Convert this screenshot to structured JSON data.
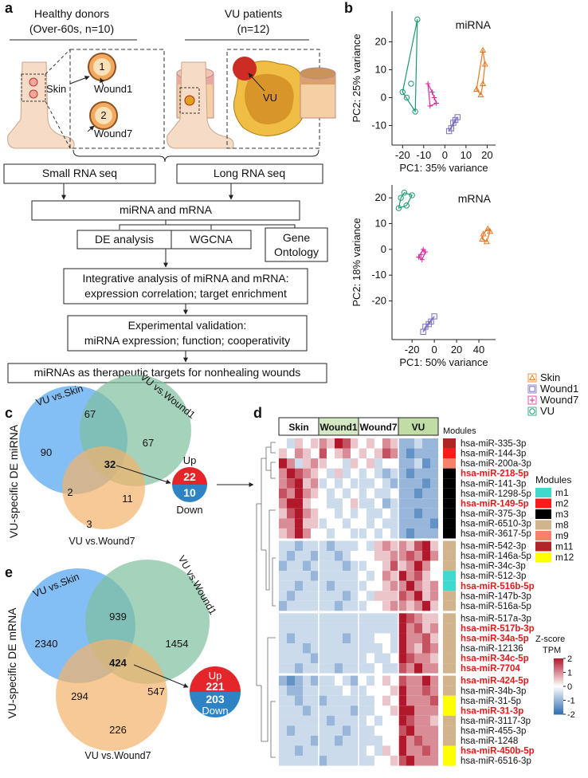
{
  "panel_a": {
    "label": "a",
    "groups": [
      {
        "title": "Healthy donors",
        "subtitle": "(Over-60s, n=10)"
      },
      {
        "title": "VU patients",
        "subtitle": "(n=12)"
      }
    ],
    "illustration_labels": {
      "one": "1",
      "two": "2",
      "skin": "Skin",
      "wound1": "Wound1",
      "wound7": "Wound7",
      "vu": "VU"
    },
    "steps": {
      "small_rna": "Small RNA seq",
      "long_rna": "Long RNA seq",
      "merge": "miRNA and mRNA",
      "de": "DE analysis",
      "wgcna": "WGCNA",
      "go": [
        "Gene",
        "Ontology"
      ],
      "integrative": [
        "Integrative analysis of miRNA and mRNA:",
        "expression correlation; target enrichment"
      ],
      "validation": [
        "Experimental validation:",
        "miRNA expression; function; cooperativity"
      ],
      "conclusion": "miRNAs as therapeutic targets for nonhealing wounds"
    }
  },
  "panel_b": {
    "label": "b",
    "groups": [
      {
        "name": "Skin",
        "color": "#e8781e",
        "marker": "triangle"
      },
      {
        "name": "Wound1",
        "color": "#7b6fc0",
        "marker": "square"
      },
      {
        "name": "Wound7",
        "color": "#e0249a",
        "marker": "cross"
      },
      {
        "name": "VU",
        "color": "#1a9a6c",
        "marker": "circle"
      }
    ],
    "charts": [
      {
        "type": "scatter",
        "title": "miRNA",
        "x_label": "PC1: 35% variance",
        "y_label": "PC2: 25% variance",
        "xlim": [
          -25,
          24
        ],
        "ylim": [
          -17,
          31
        ],
        "xticks": [
          -20,
          -10,
          0,
          10,
          20
        ],
        "yticks": [
          -10,
          0,
          10,
          20
        ],
        "series": [
          {
            "x": [
              17,
              18,
              19,
              18,
              15
            ],
            "y": [
              1,
              5,
              12,
              17,
              3
            ]
          },
          {
            "x": [
              5,
              3,
              2,
              4,
              6
            ],
            "y": [
              -8,
              -11,
              -12,
              -9,
              -7
            ]
          },
          {
            "x": [
              -8,
              -6,
              -4,
              -7,
              -5
            ],
            "y": [
              5,
              2,
              -2,
              -3,
              0
            ]
          },
          {
            "x": [
              -20,
              -16,
              -13,
              -14,
              -18
            ],
            "y": [
              2,
              5,
              28,
              -5,
              0
            ]
          }
        ]
      },
      {
        "type": "scatter",
        "title": "mRNA",
        "x_label": "PC1: 50% variance",
        "y_label": "PC2: 18% variance",
        "xlim": [
          -38,
          55
        ],
        "ylim": [
          -35,
          25
        ],
        "xticks": [
          -20,
          0,
          20,
          40
        ],
        "yticks": [
          -20,
          -10,
          0,
          10,
          20
        ],
        "series": [
          {
            "x": [
              44,
              47,
              50,
              43,
              48
            ],
            "y": [
              6,
              3,
              7,
              4,
              8
            ]
          },
          {
            "x": [
              -10,
              -5,
              0,
              -8,
              -3
            ],
            "y": [
              -32,
              -29,
              -26,
              -30,
              -28
            ]
          },
          {
            "x": [
              -12,
              -8,
              -14,
              -10,
              -11
            ],
            "y": [
              -2,
              -1,
              -3,
              0,
              -4
            ]
          },
          {
            "x": [
              -30,
              -25,
              -20,
              -32,
              -27
            ],
            "y": [
              20,
              17,
              21,
              16,
              22
            ]
          }
        ]
      }
    ]
  },
  "panel_c": {
    "label": "c",
    "y_label": "VU-specific DE miRNA",
    "sets": [
      "VU vs.Skin",
      "VU vs.Wound1",
      "VU vs.Wound7"
    ],
    "regions": {
      "skin_only": 90,
      "skin_wound1": 67,
      "wound1_only": 67,
      "all": 32,
      "skin_wound7": 2,
      "wound1_wound7": 11,
      "wound7_only": 3
    },
    "up": {
      "label": "Up",
      "value": 22
    },
    "down": {
      "label": "Down",
      "value": 10
    }
  },
  "panel_e": {
    "label": "e",
    "y_label": "VU-specific DE mRNA",
    "sets": [
      "VU vs.Skin",
      "VU vs.Wound1",
      "VU vs.Wound7"
    ],
    "regions": {
      "skin_only": 2340,
      "skin_wound1": 939,
      "wound1_only": 1454,
      "all": 424,
      "skin_wound7": 294,
      "wound1_wound7": 547,
      "wound7_only": 226
    },
    "up": {
      "label": "Up",
      "value": 221
    },
    "down": {
      "label": "Down",
      "value": 203
    }
  },
  "panel_d": {
    "label": "d",
    "groups": [
      {
        "name": "Skin",
        "color": "#ffffff"
      },
      {
        "name": "Wound1",
        "color": "#d5e8c4"
      },
      {
        "name": "Wound7",
        "color": "#ffffff"
      },
      {
        "name": "VU",
        "color": "#c2dca6"
      }
    ],
    "modules_title": "Modules",
    "rows": [
      {
        "name": "hsa-miR-335-3p",
        "module": "m11",
        "highlight": false
      },
      {
        "name": "hsa-miR-144-3p",
        "module": "m2",
        "highlight": false
      },
      {
        "name": "hsa-miR-200a-3p",
        "module": "m9",
        "highlight": false
      },
      {
        "name": "hsa-miR-218-5p",
        "module": "m3",
        "highlight": true
      },
      {
        "name": "hsa-miR-141-3p",
        "module": "m3",
        "highlight": false
      },
      {
        "name": "hsa-miR-1298-5p",
        "module": "m3",
        "highlight": false
      },
      {
        "name": "hsa-miR-149-5p",
        "module": "m3",
        "highlight": true
      },
      {
        "name": "hsa-miR-375-3p",
        "module": "m3",
        "highlight": false
      },
      {
        "name": "hsa-miR-6510-3p",
        "module": "m3",
        "highlight": false
      },
      {
        "name": "hsa-miR-3617-5p",
        "module": "m3",
        "highlight": false
      },
      {
        "name": "hsa-miR-542-3p",
        "module": "m8",
        "highlight": false
      },
      {
        "name": "hsa-miR-146a-5p",
        "module": "m8",
        "highlight": false
      },
      {
        "name": "hsa-miR-34c-3p",
        "module": "m8",
        "highlight": false
      },
      {
        "name": "hsa-miR-512-3p",
        "module": "m1",
        "highlight": false
      },
      {
        "name": "hsa-miR-516b-5p",
        "module": "m1",
        "highlight": true
      },
      {
        "name": "hsa-miR-147b-3p",
        "module": "m8",
        "highlight": false
      },
      {
        "name": "hsa-miR-516a-5p",
        "module": "m8",
        "highlight": false
      },
      {
        "name": "hsa-miR-517a-3p",
        "module": "m8",
        "highlight": false
      },
      {
        "name": "hsa-miR-517b-3p",
        "module": "m8",
        "highlight": true
      },
      {
        "name": "hsa-miR-34a-5p",
        "module": "m8",
        "highlight": true
      },
      {
        "name": "hsa-miR-12136",
        "module": "m8",
        "highlight": false
      },
      {
        "name": "hsa-miR-34c-5p",
        "module": "m8",
        "highlight": true
      },
      {
        "name": "hsa-miR-7704",
        "module": "m8",
        "highlight": true
      },
      {
        "name": "hsa-miR-424-5p",
        "module": "m8",
        "highlight": true
      },
      {
        "name": "hsa-miR-34b-3p",
        "module": "m8",
        "highlight": false
      },
      {
        "name": "hsa-miR-31-5p",
        "module": "m12",
        "highlight": false
      },
      {
        "name": "hsa-miR-31-3p",
        "module": "m12",
        "highlight": true
      },
      {
        "name": "hsa-miR-3117-3p",
        "module": "m8",
        "highlight": false
      },
      {
        "name": "hsa-miR-455-3p",
        "module": "m8",
        "highlight": false
      },
      {
        "name": "hsa-miR-1248",
        "module": "m8",
        "highlight": false
      },
      {
        "name": "hsa-miR-450b-5p",
        "module": "m12",
        "highlight": true
      },
      {
        "name": "hsa-miR-6516-3p",
        "module": "m12",
        "highlight": false
      }
    ],
    "values": [
      [
        0,
        -0.5,
        0.5,
        0,
        0.5,
        1,
        0.5,
        2,
        1.5,
        0.5,
        0,
        0.5,
        0,
        1,
        0.5,
        -1,
        -1,
        -0.5,
        -1,
        -1
      ],
      [
        0.5,
        0,
        1,
        0.5,
        0,
        1.5,
        0,
        0.5,
        1,
        0,
        0.5,
        0,
        0.5,
        1.5,
        1,
        -1,
        -1.5,
        -1,
        -1,
        -1
      ],
      [
        2,
        1,
        -0.5,
        0.5,
        1,
        0.5,
        0,
        0,
        -0.5,
        0.5,
        0,
        0.5,
        -0.5,
        0,
        0,
        -1,
        -1,
        -0.5,
        -1.5,
        -1
      ],
      [
        1,
        2,
        1.5,
        1,
        0.5,
        0,
        -0.5,
        0.5,
        -0.5,
        0,
        -0.5,
        0,
        -0.5,
        -1,
        -0.5,
        -1,
        -1.5,
        -1,
        -1,
        -1
      ],
      [
        1,
        1.5,
        2,
        0.5,
        1,
        -0.5,
        0,
        -0.5,
        0,
        -0.5,
        -0.5,
        -0.5,
        0,
        -0.5,
        -1,
        -1,
        -1,
        -1,
        -1.5,
        -1
      ],
      [
        1.5,
        1,
        2,
        1,
        0.5,
        0,
        -0.5,
        0,
        -0.5,
        0,
        -0.5,
        0,
        -0.5,
        -0.5,
        0,
        -1,
        -1,
        -1.5,
        -1,
        -1
      ],
      [
        1,
        2,
        2,
        0.5,
        0,
        0,
        -0.5,
        -0.5,
        0,
        0.5,
        -0.5,
        -0.5,
        0,
        -1,
        -0.5,
        -1,
        -1,
        -1,
        -1,
        -1
      ],
      [
        0.5,
        1.5,
        2,
        1,
        0.5,
        0,
        0,
        -0.5,
        0,
        -0.5,
        0,
        -0.5,
        -0.5,
        0,
        -0.5,
        -1,
        -1,
        -1.5,
        -1,
        -1
      ],
      [
        1,
        1,
        2,
        0.5,
        0.5,
        -0.5,
        0,
        0,
        -0.5,
        0,
        0,
        -0.5,
        0,
        -0.5,
        -0.5,
        -1,
        -1,
        -1,
        -1,
        -1.5
      ],
      [
        0.5,
        1,
        2,
        1,
        0,
        0,
        -0.5,
        0,
        0,
        -0.5,
        -0.5,
        0,
        -0.5,
        0,
        -0.5,
        -1,
        -1.5,
        -1,
        -1,
        -1
      ],
      [
        -0.5,
        -0.5,
        -1,
        -0.5,
        -0.5,
        -0.5,
        -1,
        -0.5,
        -0.5,
        -0.5,
        0,
        -0.5,
        0.5,
        1,
        0.5,
        1,
        0.5,
        1.5,
        2,
        0.5
      ],
      [
        -0.5,
        -1,
        -0.5,
        -0.5,
        -1,
        -0.5,
        -0.5,
        -1,
        -0.5,
        0,
        0,
        0,
        0.5,
        0.5,
        1,
        1,
        1.5,
        1,
        2,
        1
      ],
      [
        -1,
        -0.5,
        -0.5,
        -1,
        -0.5,
        -0.5,
        -0.5,
        -0.5,
        -1,
        -0.5,
        -0.5,
        0,
        0,
        0.5,
        1.5,
        0.5,
        1,
        2,
        1,
        0
      ],
      [
        -0.5,
        -0.5,
        -0.5,
        -0.5,
        -1,
        -0.5,
        -0.5,
        -0.5,
        -0.5,
        -0.5,
        0,
        -0.5,
        0,
        1,
        0.5,
        2,
        1,
        1.5,
        0.5,
        0
      ],
      [
        -0.5,
        -0.5,
        -1,
        -0.5,
        -0.5,
        -0.5,
        -1,
        -0.5,
        -0.5,
        -0.5,
        -0.5,
        0,
        0,
        0.5,
        1,
        1,
        2,
        1,
        0.5,
        1
      ],
      [
        -0.5,
        -1,
        -0.5,
        -0.5,
        -0.5,
        -0.5,
        -0.5,
        -0.5,
        -1,
        -0.5,
        0,
        -0.5,
        0.5,
        0.5,
        0.5,
        1.5,
        1,
        2,
        0.5,
        1
      ],
      [
        -1,
        -0.5,
        -0.5,
        -0.5,
        -0.5,
        -0.5,
        -0.5,
        -1,
        -0.5,
        -0.5,
        -0.5,
        0,
        0,
        0.5,
        1,
        1,
        0.5,
        1,
        2,
        0.5
      ],
      [
        -0.5,
        -0.5,
        -0.5,
        -0.5,
        -0.5,
        -0.5,
        -0.5,
        -0.5,
        -0.5,
        -0.5,
        -0.5,
        -0.5,
        -0.5,
        -0.5,
        -0.5,
        2,
        1.5,
        1,
        0.5,
        0.5
      ],
      [
        -0.5,
        -0.5,
        -0.5,
        -0.5,
        -0.5,
        -0.5,
        -0.5,
        -0.5,
        -0.5,
        -0.5,
        -0.5,
        -0.5,
        -0.5,
        -0.5,
        -0.5,
        2,
        1,
        1.5,
        0.5,
        1
      ],
      [
        -0.5,
        -1,
        -0.5,
        -0.5,
        -0.5,
        -0.5,
        -0.5,
        -0.5,
        -1,
        -0.5,
        -0.5,
        -0.5,
        0,
        0,
        -0.5,
        2,
        1,
        1,
        1.5,
        0.5
      ],
      [
        -0.5,
        -0.5,
        -0.5,
        -1,
        -0.5,
        -0.5,
        -0.5,
        -0.5,
        -0.5,
        -0.5,
        -0.5,
        -0.5,
        -0.5,
        0,
        -0.5,
        2,
        1,
        0.5,
        1.5,
        1
      ],
      [
        -0.5,
        -0.5,
        -0.5,
        -0.5,
        -1,
        -0.5,
        -0.5,
        -0.5,
        -0.5,
        -0.5,
        -0.5,
        0,
        -0.5,
        -0.5,
        0,
        2,
        1.5,
        1,
        1,
        0.5
      ],
      [
        -0.5,
        -0.5,
        -1,
        -0.5,
        -0.5,
        -0.5,
        -0.5,
        -1,
        -0.5,
        -0.5,
        -0.5,
        -0.5,
        0,
        -0.5,
        -0.5,
        1.5,
        1,
        2,
        1,
        1
      ],
      [
        -1,
        -1.5,
        -1,
        -0.5,
        -1,
        -0.5,
        -0.5,
        0,
        -0.5,
        -1,
        0,
        -0.5,
        0,
        0.5,
        0,
        1.5,
        1,
        1,
        2,
        1
      ],
      [
        -0.5,
        -1,
        -1,
        -0.5,
        -0.5,
        -0.5,
        -0.5,
        -0.5,
        0,
        -0.5,
        -0.5,
        0,
        0,
        0,
        0.5,
        2,
        1,
        1,
        1.5,
        1
      ],
      [
        -0.5,
        -0.5,
        -1,
        -0.5,
        -0.5,
        -1,
        -0.5,
        -0.5,
        -0.5,
        -0.5,
        -0.5,
        -0.5,
        0,
        0.5,
        0,
        2,
        1,
        1,
        1,
        1.5
      ],
      [
        -0.5,
        -0.5,
        -0.5,
        -1,
        -0.5,
        -0.5,
        -0.5,
        -0.5,
        -0.5,
        -1,
        -0.5,
        -0.5,
        0,
        0,
        0.5,
        2,
        2,
        1,
        1,
        1
      ],
      [
        -0.5,
        -0.5,
        -0.5,
        -0.5,
        -0.5,
        -0.5,
        -1,
        -0.5,
        -0.5,
        -0.5,
        -0.5,
        0,
        -0.5,
        0,
        0,
        2,
        1.5,
        1,
        1,
        0.5
      ],
      [
        -0.5,
        -1,
        -0.5,
        -0.5,
        -0.5,
        -0.5,
        -0.5,
        -0.5,
        -1,
        -0.5,
        -0.5,
        -0.5,
        0,
        0,
        0,
        1.5,
        2,
        1,
        1,
        1
      ],
      [
        -0.5,
        -0.5,
        -0.5,
        -0.5,
        -1,
        -0.5,
        -0.5,
        -1,
        -0.5,
        -0.5,
        -0.5,
        -0.5,
        -0.5,
        0,
        0,
        2,
        1,
        1.5,
        1,
        1
      ],
      [
        -0.5,
        -0.5,
        -1,
        -0.5,
        -0.5,
        -0.5,
        -0.5,
        -0.5,
        -0.5,
        -0.5,
        -0.5,
        0,
        -0.5,
        0.5,
        0,
        2,
        1,
        1,
        1.5,
        1
      ],
      [
        -0.5,
        -0.5,
        -0.5,
        -0.5,
        -0.5,
        -1,
        -0.5,
        -0.5,
        -0.5,
        -0.5,
        -0.5,
        -0.5,
        0,
        0,
        0.5,
        1.5,
        2,
        1,
        1,
        1
      ]
    ],
    "module_legend": {
      "title": "Modules",
      "items": [
        {
          "name": "m1",
          "color": "#3fd9cf"
        },
        {
          "name": "m2",
          "color": "#ff1a1a"
        },
        {
          "name": "m3",
          "color": "#000000"
        },
        {
          "name": "m8",
          "color": "#d2b48c"
        },
        {
          "name": "m9",
          "color": "#f6826c"
        },
        {
          "name": "m11",
          "color": "#b02525"
        },
        {
          "name": "m12",
          "color": "#ffff00"
        }
      ]
    },
    "colorbar": {
      "title": [
        "Z-score",
        "TPM"
      ],
      "lim": [
        -2,
        2
      ],
      "ticks": [
        2,
        1,
        0,
        -1,
        -2
      ],
      "low_color": "#2f6db3",
      "mid_color": "#ffffff",
      "high_color": "#b2182b"
    }
  }
}
